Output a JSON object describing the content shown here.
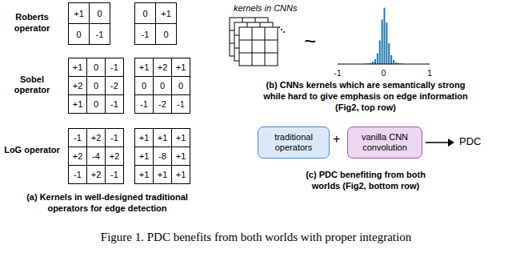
{
  "operators": [
    {
      "label": "Roberts operator",
      "kernels": [
        [
          [
            "+1",
            "0"
          ],
          [
            "0",
            "-1"
          ]
        ],
        [
          [
            "0",
            "+1"
          ],
          [
            "-1",
            "0"
          ]
        ]
      ]
    },
    {
      "label": "Sobel operator",
      "kernels": [
        [
          [
            "+1",
            "0",
            "-1"
          ],
          [
            "+2",
            "0",
            "-2"
          ],
          [
            "+1",
            "0",
            "-1"
          ]
        ],
        [
          [
            "+1",
            "+2",
            "+1"
          ],
          [
            "0",
            "0",
            "0"
          ],
          [
            "-1",
            "-2",
            "-1"
          ]
        ]
      ]
    },
    {
      "label": "LoG operator",
      "kernels": [
        [
          [
            "-1",
            "+2",
            "-1"
          ],
          [
            "+2",
            "-4",
            "+2"
          ],
          [
            "-1",
            "+2",
            "-1"
          ]
        ],
        [
          [
            "+1",
            "+1",
            "+1"
          ],
          [
            "+1",
            "-8",
            "+1"
          ],
          [
            "+1",
            "+1",
            "+1"
          ]
        ]
      ]
    }
  ],
  "caption_a": [
    "(a) Kernels in well-designed traditional",
    "operators for edge detection"
  ],
  "kernels_label": "kernels in CNNs",
  "tilde": "~",
  "chart_data": {
    "type": "histogram",
    "bins": [
      -1,
      -0.95,
      -0.9,
      -0.85,
      -0.8,
      -0.75,
      -0.7,
      -0.65,
      -0.6,
      -0.55,
      -0.5,
      -0.45,
      -0.4,
      -0.35,
      -0.3,
      -0.25,
      -0.2,
      -0.15,
      -0.1,
      -0.05,
      0,
      0.05,
      0.1,
      0.15,
      0.2,
      0.25,
      0.3,
      0.35,
      0.4,
      0.45,
      0.5,
      0.55,
      0.6,
      0.65,
      0.7,
      0.75,
      0.8,
      0.85,
      0.9,
      0.95,
      1
    ],
    "counts": [
      0,
      0,
      0,
      0,
      0,
      0,
      0,
      0,
      0,
      0,
      0,
      0,
      1,
      1,
      2,
      4,
      8,
      18,
      40,
      75,
      95,
      70,
      35,
      15,
      7,
      3,
      2,
      1,
      1,
      0,
      0,
      0,
      0,
      0,
      0,
      0,
      0,
      0,
      0,
      0
    ],
    "color": "#1f77b4",
    "xlim": [
      -1,
      1
    ],
    "xticks": [
      -1,
      0,
      1
    ],
    "ylim": [
      0,
      100
    ],
    "tick_labels": "x"
  },
  "caption_b": [
    "(b) CNNs kernels which are semantically strong",
    "while hard to give emphasis on edge information",
    "(Fig2, top row)"
  ],
  "pdc": {
    "boxes": [
      "traditional operators",
      "vanilla CNN convolution"
    ],
    "plus": "+",
    "result": "PDC"
  },
  "caption_c": [
    "(c) PDC benefiting from both",
    "worlds (Fig2, bottom row)"
  ],
  "figure_caption": "Figure 1. PDC benefits from both worlds with proper integration"
}
